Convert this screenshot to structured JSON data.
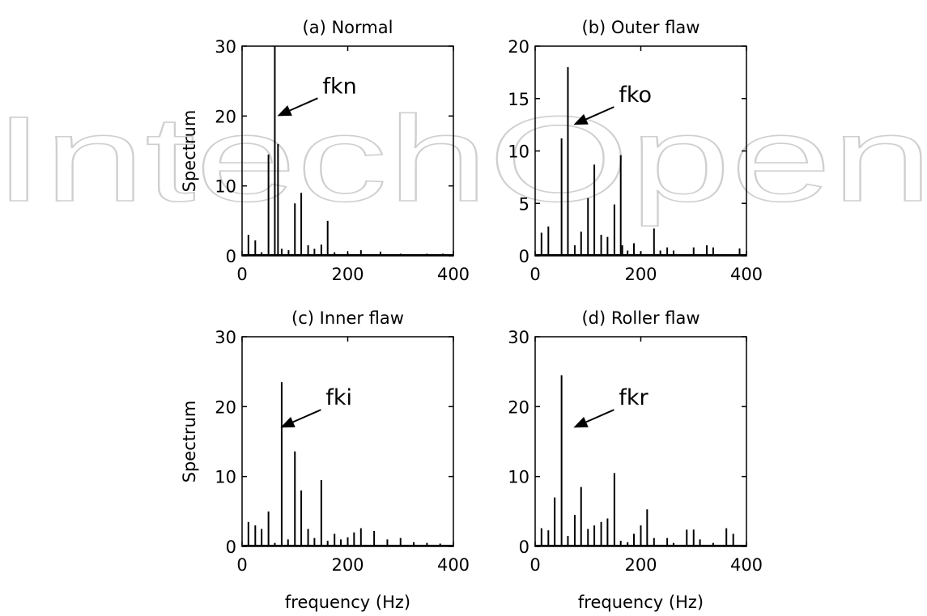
{
  "watermark": {
    "text": "IntechOpen"
  },
  "chart_data": [
    {
      "type": "bar",
      "title": "(a) Normal",
      "xlabel": "",
      "ylabel": "Spectrum",
      "xlim": [
        0,
        400
      ],
      "ylim": [
        0,
        30
      ],
      "xticks": [
        "0",
        "200",
        "400"
      ],
      "yticks": [
        "0",
        "10",
        "20",
        "30"
      ],
      "annotation": {
        "text": "fkn",
        "target": [
          62,
          20
        ]
      },
      "x": [
        12,
        25,
        37,
        50,
        62,
        68,
        75,
        88,
        100,
        112,
        125,
        137,
        150,
        162,
        175,
        200,
        225,
        262,
        300,
        350,
        380
      ],
      "values": [
        3,
        2.2,
        0.5,
        14.5,
        30,
        16,
        1,
        0.8,
        7.5,
        9,
        1.5,
        1,
        1.6,
        5,
        0.5,
        0.4,
        0.8,
        0.6,
        0.3,
        0.3,
        0.3
      ]
    },
    {
      "type": "bar",
      "title": "(b) Outer flaw",
      "xlabel": "",
      "ylabel": "",
      "xlim": [
        0,
        400
      ],
      "ylim": [
        0,
        20
      ],
      "xticks": [
        "0",
        "200",
        "400"
      ],
      "yticks": [
        "0",
        "5",
        "10",
        "15",
        "20"
      ],
      "annotation": {
        "text": "fko",
        "target": [
          68,
          12.5
        ]
      },
      "x": [
        12,
        25,
        50,
        62,
        75,
        87,
        100,
        112,
        125,
        137,
        150,
        162,
        165,
        175,
        187,
        200,
        225,
        237,
        250,
        262,
        300,
        325,
        337,
        387
      ],
      "values": [
        2.2,
        2.8,
        11.2,
        18,
        1,
        2.3,
        5.5,
        8.7,
        2,
        1.8,
        4.9,
        9.6,
        1,
        0.5,
        1.2,
        0.4,
        2.6,
        0.5,
        0.8,
        0.5,
        0.8,
        1,
        0.8,
        0.7
      ]
    },
    {
      "type": "bar",
      "title": "(c) Inner flaw",
      "xlabel": "frequency (Hz)",
      "ylabel": "Spectrum",
      "xlim": [
        0,
        400
      ],
      "ylim": [
        0,
        30
      ],
      "xticks": [
        "0",
        "200",
        "400"
      ],
      "yticks": [
        "0",
        "10",
        "20",
        "30"
      ],
      "annotation": {
        "text": "fki",
        "target": [
          68,
          17
        ]
      },
      "x": [
        12,
        25,
        37,
        50,
        62,
        75,
        87,
        100,
        112,
        125,
        137,
        150,
        162,
        175,
        187,
        200,
        212,
        225,
        250,
        275,
        300,
        325,
        350,
        375
      ],
      "values": [
        3.5,
        3,
        2.5,
        5,
        0.5,
        23.5,
        1,
        13.6,
        8,
        2.5,
        1.2,
        9.5,
        0.8,
        1.8,
        1,
        1.3,
        2,
        2.6,
        2.2,
        1,
        1.2,
        0.6,
        0.5,
        0.4
      ]
    },
    {
      "type": "bar",
      "title": "(d) Roller flaw",
      "xlabel": "frequency (Hz)",
      "ylabel": "",
      "xlim": [
        0,
        400
      ],
      "ylim": [
        0,
        30
      ],
      "xticks": [
        "0",
        "200",
        "400"
      ],
      "yticks": [
        "0",
        "10",
        "20",
        "30"
      ],
      "annotation": {
        "text": "fkr",
        "target": [
          68,
          17
        ]
      },
      "x": [
        12,
        25,
        37,
        50,
        62,
        75,
        87,
        100,
        112,
        125,
        137,
        150,
        162,
        175,
        187,
        200,
        212,
        225,
        250,
        262,
        287,
        300,
        312,
        337,
        362,
        375
      ],
      "values": [
        2.6,
        2.3,
        7,
        24.5,
        1.5,
        4.5,
        8.5,
        2.5,
        3,
        3.5,
        4,
        10.5,
        0.8,
        0.6,
        1.8,
        3,
        5.3,
        1.2,
        1.2,
        0.5,
        2.4,
        2.4,
        1,
        0.5,
        2.6,
        1.8
      ]
    }
  ]
}
